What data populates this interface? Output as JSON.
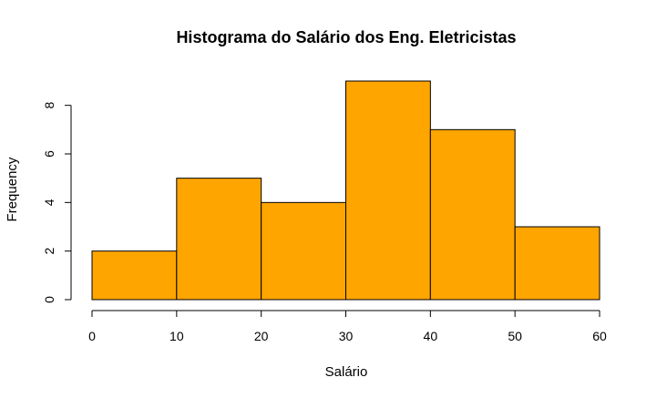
{
  "chart_data": {
    "type": "bar",
    "title": "Histograma do Salário dos Eng. Eletricistas",
    "xlabel": "Salário",
    "ylabel": "Frequency",
    "bins": [
      {
        "from": 0,
        "to": 10,
        "count": 2
      },
      {
        "from": 10,
        "to": 20,
        "count": 5
      },
      {
        "from": 20,
        "to": 30,
        "count": 4
      },
      {
        "from": 30,
        "to": 40,
        "count": 9
      },
      {
        "from": 40,
        "to": 50,
        "count": 7
      },
      {
        "from": 50,
        "to": 60,
        "count": 3
      }
    ],
    "xticks": [
      "0",
      "10",
      "20",
      "30",
      "40",
      "50",
      "60"
    ],
    "yticks": [
      "0",
      "2",
      "4",
      "6",
      "8"
    ],
    "xlim": [
      0,
      60
    ],
    "ylim": [
      0,
      9
    ],
    "bar_color": "#FFA500",
    "grid": false
  }
}
